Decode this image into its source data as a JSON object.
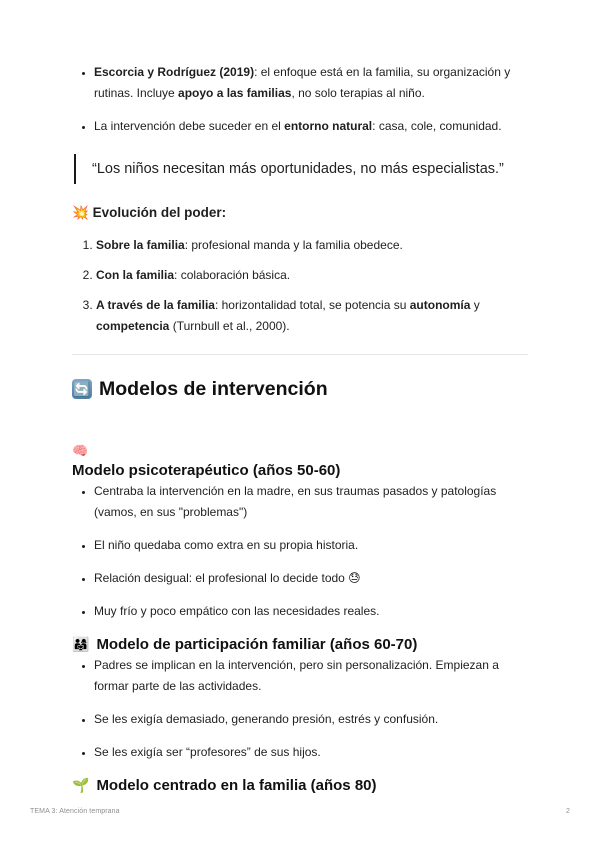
{
  "intro_bullets": [
    [
      {
        "t": "Escorcia y Rodríguez (2019)",
        "b": true
      },
      {
        "t": ": el enfoque está en la familia, su organización y rutinas. Incluye ",
        "b": false
      },
      {
        "t": "apoyo a las familias",
        "b": true
      },
      {
        "t": ", no solo terapias al niño.",
        "b": false
      }
    ],
    [
      {
        "t": "La intervención debe suceder en el ",
        "b": false
      },
      {
        "t": "entorno natural",
        "b": true
      },
      {
        "t": ": casa, cole, comunidad.",
        "b": false
      }
    ]
  ],
  "quote": {
    "text": "“Los niños necesitan más oportunidades, no más especialistas.”"
  },
  "power": {
    "icon": "💥",
    "title": "Evolución del poder:",
    "items": [
      [
        {
          "t": "Sobre la familia",
          "b": true
        },
        {
          "t": ": profesional manda y la familia obedece.",
          "b": false
        }
      ],
      [
        {
          "t": "Con la familia",
          "b": true
        },
        {
          "t": ": colaboración básica.",
          "b": false
        }
      ],
      [
        {
          "t": "A través de la familia",
          "b": true
        },
        {
          "t": ": horizontalidad total, se potencia su ",
          "b": false
        },
        {
          "t": "autonomía",
          "b": true
        },
        {
          "t": " y ",
          "b": false
        },
        {
          "t": "competencia",
          "b": true
        },
        {
          "t": " (Turnbull et al., 2000).",
          "b": false
        }
      ]
    ]
  },
  "main_heading": {
    "icon": "🔄",
    "text": "Modelos de intervención"
  },
  "model1": {
    "icon": "🧠",
    "title": "Modelo psicoterapéutico (años 50-60)",
    "bullets": [
      [
        {
          "t": "Centraba la intervención en la madre, en sus traumas pasados y patologías (vamos, en sus \"problemas\")",
          "b": false
        }
      ],
      [
        {
          "t": "El niño quedaba como extra en su propia historia.",
          "b": false
        }
      ],
      [
        {
          "t": "Relación desigual: el profesional lo decide todo 😓",
          "b": false
        }
      ],
      [
        {
          "t": "Muy frío y poco empático con las necesidades reales.",
          "b": false
        }
      ]
    ]
  },
  "model2": {
    "icon": "👨‍👩‍👧",
    "title": "Modelo de participación familiar (años 60-70)",
    "bullets": [
      [
        {
          "t": "Padres se implican en la intervención, pero sin personalización. Empiezan a formar parte de las actividades.",
          "b": false
        }
      ],
      [
        {
          "t": "Se les exigía demasiado, generando presión, estrés y confusión.",
          "b": false
        }
      ],
      [
        {
          "t": "Se les exigía ser “profesores” de sus hijos.",
          "b": false
        }
      ]
    ]
  },
  "model3": {
    "icon": "🌱",
    "title": "Modelo centrado en la familia (años 80)"
  },
  "footer": {
    "left": "TEMA 3: Atención temprana",
    "page_number": "2"
  },
  "colors": {
    "text": "#1f1f1f",
    "divider": "#e7e7e5",
    "quote_bar": "#1a1a1a",
    "footer_text": "#8f8f8f",
    "refresh_icon_bg": "#5b83ab"
  }
}
